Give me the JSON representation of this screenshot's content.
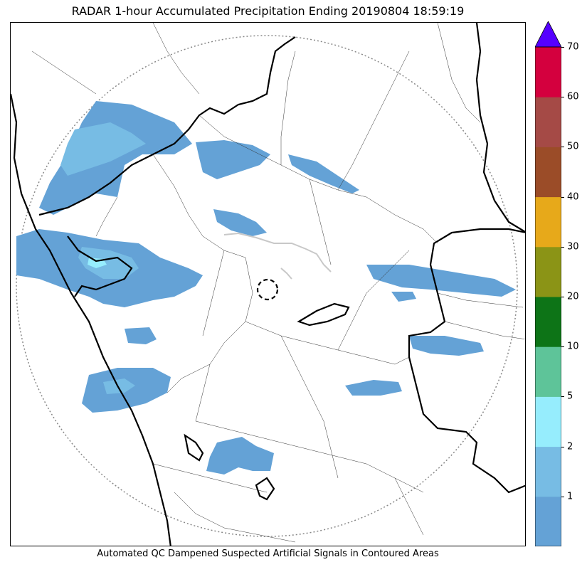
{
  "title": "RADAR 1-hour Accumulated Precipitation Ending 20190804 18:59:19",
  "caption": "Automated QC Dampened Suspected Artificial Signals in Contoured Areas",
  "colorbar": {
    "labels": [
      "1",
      "2",
      "5",
      "10",
      "20",
      "30",
      "40",
      "50",
      "60",
      "70"
    ],
    "colors": [
      "#64a2d6",
      "#77bce4",
      "#96edfd",
      "#5ec499",
      "#0d7417",
      "#8b9416",
      "#e7a91a",
      "#9b4c28",
      "#a54a46",
      "#d4003e"
    ],
    "over_color": "#5500ff",
    "units_note": ""
  },
  "map": {
    "radar_site_marker": "dashed-circle",
    "range_ring": "dotted-circle",
    "colors": {
      "precip_light": "#64a2d6",
      "precip_medium": "#77bce4",
      "precip_high": "#96edfd",
      "qc_contour": "#c8c8c8"
    }
  }
}
